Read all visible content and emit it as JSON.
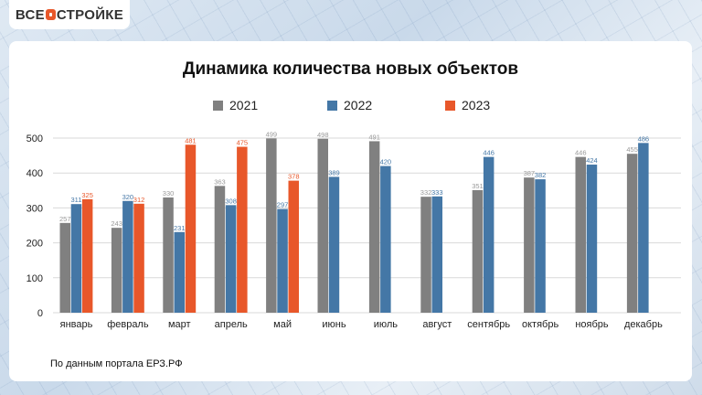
{
  "logo": {
    "text_left": "ВСЕ",
    "text_right": "СТРОЙКЕ"
  },
  "chart_data": {
    "type": "bar",
    "title": "Динамика количества новых объектов",
    "categories": [
      "январь",
      "февраль",
      "март",
      "апрель",
      "май",
      "июнь",
      "июль",
      "август",
      "сентябрь",
      "октябрь",
      "ноябрь",
      "декабрь"
    ],
    "series": [
      {
        "name": "2021",
        "color": "#808080",
        "values": [
          257,
          243,
          330,
          363,
          499,
          498,
          491,
          332,
          351,
          387,
          446,
          455
        ]
      },
      {
        "name": "2022",
        "color": "#4477a6",
        "values": [
          311,
          320,
          231,
          308,
          297,
          389,
          420,
          333,
          446,
          382,
          424,
          486
        ]
      },
      {
        "name": "2023",
        "color": "#e8572a",
        "values": [
          325,
          312,
          481,
          475,
          378,
          null,
          null,
          null,
          null,
          null,
          null,
          null
        ]
      }
    ],
    "ylim": [
      0,
      500
    ],
    "yticks": [
      0,
      100,
      200,
      300,
      400,
      500
    ],
    "grid": true,
    "legend": "top",
    "xlabel": "",
    "ylabel": ""
  },
  "source": "По данным портала ЕРЗ.РФ"
}
